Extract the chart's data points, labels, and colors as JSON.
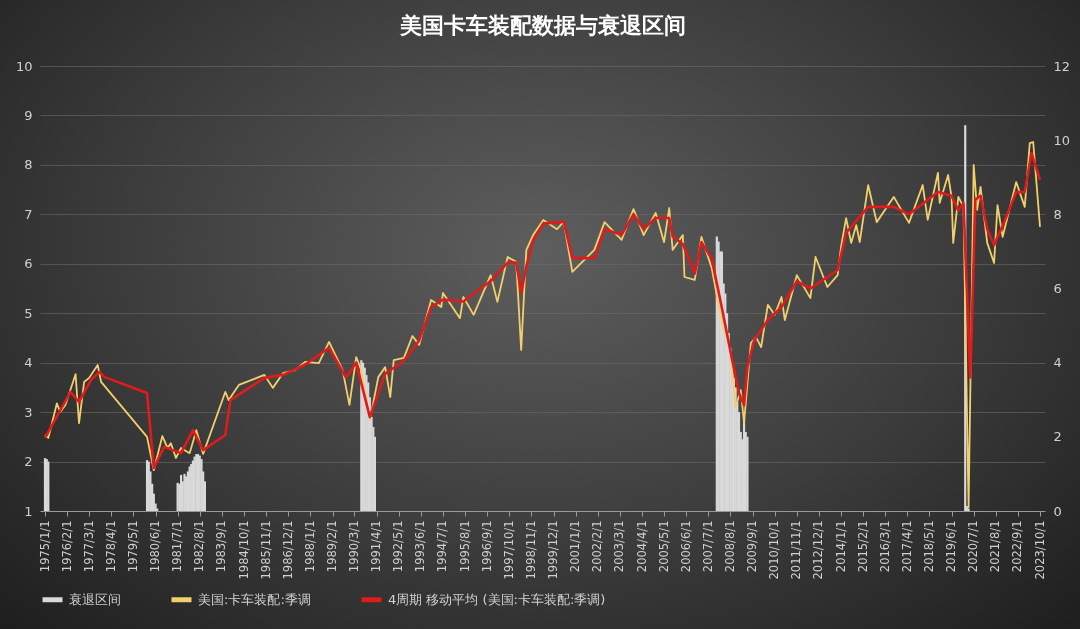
{
  "chart_data": {
    "type": "line",
    "title": "美国卡车装配数据与衰退区间",
    "ylim": [
      1,
      10
    ],
    "yticks": [
      1,
      2,
      3,
      4,
      5,
      6,
      7,
      8,
      9,
      10
    ],
    "y2lim": [
      0,
      12
    ],
    "y2ticks": [
      0,
      2,
      4,
      6,
      8,
      10,
      12
    ],
    "xlim": [
      "1975-01-01",
      "2023-10-01"
    ],
    "xticks": [
      {
        "value": "1975-01-01",
        "label": "1975/1/1"
      },
      {
        "value": "1976-02-01",
        "label": "1976/2/1"
      },
      {
        "value": "1977-03-01",
        "label": "1977/3/1"
      },
      {
        "value": "1978-04-01",
        "label": "1978/4/1"
      },
      {
        "value": "1979-05-01",
        "label": "1979/5/1"
      },
      {
        "value": "1980-06-01",
        "label": "1980/6/1"
      },
      {
        "value": "1981-07-01",
        "label": "1981/7/1"
      },
      {
        "value": "1982-08-01",
        "label": "1982/8/1"
      },
      {
        "value": "1983-09-01",
        "label": "1983/9/1"
      },
      {
        "value": "1984-10-01",
        "label": "1984/10/1"
      },
      {
        "value": "1985-11-01",
        "label": "1985/11/1"
      },
      {
        "value": "1986-12-01",
        "label": "1986/12/1"
      },
      {
        "value": "1988-01-01",
        "label": "1988/1/1"
      },
      {
        "value": "1989-02-01",
        "label": "1989/2/1"
      },
      {
        "value": "1990-03-01",
        "label": "1990/3/1"
      },
      {
        "value": "1991-04-01",
        "label": "1991/4/1"
      },
      {
        "value": "1992-05-01",
        "label": "1992/5/1"
      },
      {
        "value": "1993-06-01",
        "label": "1993/6/1"
      },
      {
        "value": "1994-07-01",
        "label": "1994/7/1"
      },
      {
        "value": "1995-08-01",
        "label": "1995/8/1"
      },
      {
        "value": "1996-09-01",
        "label": "1996/9/1"
      },
      {
        "value": "1997-10-01",
        "label": "1997/10/1"
      },
      {
        "value": "1998-11-01",
        "label": "1998/11/1"
      },
      {
        "value": "1999-12-01",
        "label": "1999/12/1"
      },
      {
        "value": "2001-01-01",
        "label": "2001/1/1"
      },
      {
        "value": "2002-02-01",
        "label": "2002/2/1"
      },
      {
        "value": "2003-03-01",
        "label": "2003/3/1"
      },
      {
        "value": "2004-04-01",
        "label": "2004/4/1"
      },
      {
        "value": "2005-05-01",
        "label": "2005/5/1"
      },
      {
        "value": "2006-06-01",
        "label": "2006/6/1"
      },
      {
        "value": "2007-07-01",
        "label": "2007/7/1"
      },
      {
        "value": "2008-08-01",
        "label": "2008/8/1"
      },
      {
        "value": "2009-09-01",
        "label": "2009/9/1"
      },
      {
        "value": "2010-10-01",
        "label": "2010/10/1"
      },
      {
        "value": "2011-11-01",
        "label": "2011/11/1"
      },
      {
        "value": "2012-12-01",
        "label": "2012/12/1"
      },
      {
        "value": "2014-01-01",
        "label": "2014/1/1"
      },
      {
        "value": "2015-02-01",
        "label": "2015/2/1"
      },
      {
        "value": "2016-03-01",
        "label": "2016/3/1"
      },
      {
        "value": "2017-04-01",
        "label": "2017/4/1"
      },
      {
        "value": "2018-05-01",
        "label": "2018/5/1"
      },
      {
        "value": "2019-06-01",
        "label": "2019/6/1"
      },
      {
        "value": "2020-07-01",
        "label": "2020/7/1"
      },
      {
        "value": "2021-08-01",
        "label": "2021/8/1"
      },
      {
        "value": "2022-09-01",
        "label": "2022/9/1"
      },
      {
        "value": "2023-10-01",
        "label": "2023/10/1"
      }
    ],
    "grid": "y",
    "legend": "bottom",
    "series": [
      {
        "name": "衰退区间",
        "type": "bar",
        "color": "#d9d9d9",
        "x": [
          "1975-01",
          "1975-02",
          "1975-03",
          "1980-01",
          "1980-02",
          "1980-03",
          "1980-04",
          "1980-05",
          "1980-06",
          "1980-07",
          "1981-07",
          "1981-08",
          "1981-09",
          "1981-10",
          "1981-11",
          "1981-12",
          "1982-01",
          "1982-02",
          "1982-03",
          "1982-04",
          "1982-05",
          "1982-06",
          "1982-07",
          "1982-08",
          "1982-09",
          "1982-10",
          "1982-11",
          "1990-07",
          "1990-08",
          "1990-09",
          "1990-10",
          "1990-11",
          "1990-12",
          "1991-01",
          "1991-02",
          "1991-03",
          "2007-12",
          "2008-01",
          "2008-02",
          "2008-03",
          "2008-04",
          "2008-05",
          "2008-06",
          "2008-07",
          "2008-08",
          "2008-09",
          "2008-10",
          "2008-11",
          "2008-12",
          "2009-01",
          "2009-02",
          "2009-03",
          "2009-04",
          "2009-05",
          "2009-06",
          "2020-02",
          "2020-03",
          "2020-04"
        ],
        "values": [
          2.07,
          2.05,
          2.0,
          2.03,
          2.0,
          1.8,
          1.55,
          1.35,
          1.15,
          1.05,
          1.57,
          1.55,
          1.73,
          1.6,
          1.75,
          1.7,
          1.8,
          1.9,
          1.95,
          2.02,
          2.1,
          2.15,
          2.15,
          2.12,
          2.05,
          1.8,
          1.6,
          4.05,
          4.0,
          3.9,
          3.75,
          3.6,
          3.3,
          2.9,
          2.7,
          2.5,
          6.55,
          6.45,
          6.25,
          6.25,
          5.6,
          5.4,
          5.0,
          4.6,
          4.3,
          4.0,
          3.7,
          3.5,
          3.2,
          3.0,
          2.6,
          2.45,
          2.85,
          2.6,
          2.5,
          8.8,
          1.1,
          1.05
        ]
      },
      {
        "name": "美国:卡车装配:季调",
        "type": "line",
        "axis": "y2",
        "color": "#f2cf6b",
        "x": [
          "1975-01",
          "1975-03",
          "1975-08",
          "1975-10",
          "1976-01",
          "1976-07",
          "1976-09",
          "1976-12",
          "1977-03",
          "1977-08",
          "1977-10",
          "1980-01",
          "1980-05",
          "1980-10",
          "1981-01",
          "1981-03",
          "1981-06",
          "1981-09",
          "1982-02",
          "1982-06",
          "1982-10",
          "1983-11",
          "1984-01",
          "1984-07",
          "1985-10",
          "1986-03",
          "1986-09",
          "1987-04",
          "1987-10",
          "1988-06",
          "1988-12",
          "1989-08",
          "1989-12",
          "1990-04",
          "1990-07",
          "1990-12",
          "1991-05",
          "1991-09",
          "1991-12",
          "1992-02",
          "1992-08",
          "1993-01",
          "1993-05",
          "1993-12",
          "1994-06",
          "1994-07",
          "1995-05",
          "1995-07",
          "1996-01",
          "1996-11",
          "1997-03",
          "1997-09",
          "1998-02",
          "1998-05",
          "1998-08",
          "1998-12",
          "1999-06",
          "2000-02",
          "2000-06",
          "2000-11",
          "2001-12",
          "2002-06",
          "2003-04",
          "2003-11",
          "2004-05",
          "2004-12",
          "2005-05",
          "2005-08",
          "2005-10",
          "2006-04",
          "2006-05",
          "2006-11",
          "2007-03",
          "2007-09",
          "2008-02",
          "2008-08",
          "2008-11",
          "2009-02",
          "2009-04",
          "2009-08",
          "2009-11",
          "2010-02",
          "2010-06",
          "2010-10",
          "2011-02",
          "2011-04",
          "2011-11",
          "2012-07",
          "2012-10",
          "2013-05",
          "2013-11",
          "2014-01",
          "2014-04",
          "2014-07",
          "2014-10",
          "2014-12",
          "2015-05",
          "2015-10",
          "2016-08",
          "2017-05",
          "2018-01",
          "2018-04",
          "2018-10",
          "2018-11",
          "2019-04",
          "2019-06",
          "2019-07",
          "2019-10",
          "2020-01",
          "2020-04",
          "2020-07",
          "2020-09",
          "2020-11",
          "2021-03",
          "2021-07",
          "2021-09",
          "2021-12",
          "2022-08",
          "2023-01",
          "2023-04",
          "2023-06",
          "2023-10"
        ],
        "values": [
          2.05,
          1.97,
          2.9,
          2.67,
          2.86,
          3.69,
          2.37,
          3.48,
          3.59,
          3.94,
          3.48,
          2.0,
          1.1,
          2.02,
          1.7,
          1.83,
          1.43,
          1.7,
          1.56,
          2.18,
          1.54,
          3.21,
          2.99,
          3.4,
          3.67,
          3.32,
          3.72,
          3.8,
          4.02,
          3.99,
          4.56,
          3.8,
          2.86,
          4.15,
          3.8,
          2.45,
          3.61,
          3.88,
          3.07,
          4.07,
          4.13,
          4.72,
          4.48,
          5.69,
          5.5,
          5.88,
          5.2,
          5.77,
          5.29,
          6.36,
          5.64,
          6.85,
          6.72,
          4.34,
          7.04,
          7.44,
          7.85,
          7.6,
          7.8,
          6.45,
          7.04,
          7.79,
          7.31,
          8.14,
          7.44,
          8.04,
          7.25,
          8.17,
          7.04,
          7.44,
          6.31,
          6.23,
          7.39,
          6.55,
          5.3,
          4.3,
          2.8,
          3.26,
          2.37,
          4.53,
          4.69,
          4.42,
          5.56,
          5.29,
          5.77,
          5.15,
          6.36,
          5.74,
          6.85,
          6.04,
          6.36,
          7.12,
          7.9,
          7.23,
          7.71,
          7.25,
          8.79,
          7.79,
          8.47,
          7.77,
          8.79,
          7.85,
          9.12,
          8.31,
          9.06,
          8.47,
          7.23,
          8.47,
          8.2,
          0.1,
          9.33,
          8.12,
          8.74,
          7.23,
          6.69,
          8.25,
          7.39,
          8.87,
          8.2,
          9.92,
          9.95,
          7.66
        ]
      },
      {
        "name": "4周期 移动平均 (美国:卡车装配:季调)",
        "type": "line",
        "axis": "y2",
        "color": "#e01b1b",
        "x": [
          "1975-01",
          "1976-04",
          "1976-09",
          "1977-04",
          "1977-09",
          "1977-12",
          "1980-01",
          "1980-05",
          "1980-11",
          "1981-09",
          "1982-04",
          "1982-10",
          "1983-11",
          "1984-02",
          "1985-10",
          "1986-09",
          "1987-10",
          "1988-12",
          "1989-10",
          "1990-04",
          "1990-12",
          "1991-09",
          "1992-08",
          "1993-05",
          "1993-12",
          "1994-07",
          "1995-07",
          "1996-11",
          "1997-09",
          "1998-02",
          "1998-05",
          "1998-08",
          "1998-12",
          "1999-06",
          "2000-06",
          "2000-11",
          "2001-12",
          "2002-06",
          "2003-04",
          "2003-11",
          "2004-05",
          "2004-12",
          "2005-08",
          "2005-10",
          "2006-04",
          "2006-11",
          "2007-03",
          "2007-09",
          "2008-02",
          "2008-09",
          "2009-01",
          "2009-04",
          "2009-06",
          "2009-10",
          "2010-06",
          "2011-02",
          "2011-11",
          "2012-07",
          "2013-11",
          "2014-04",
          "2015-05",
          "2016-08",
          "2017-05",
          "2018-10",
          "2019-06",
          "2019-10",
          "2020-01",
          "2020-05",
          "2020-08",
          "2020-11",
          "2021-03",
          "2021-07",
          "2022-01",
          "2022-08",
          "2023-01",
          "2023-05",
          "2023-10"
        ],
        "values": [
          1.97,
          3.21,
          2.94,
          3.53,
          3.75,
          3.61,
          3.18,
          1.16,
          1.73,
          1.56,
          2.18,
          1.64,
          2.05,
          2.99,
          3.59,
          3.67,
          3.95,
          4.4,
          3.6,
          4.0,
          2.53,
          3.7,
          4.05,
          4.6,
          5.5,
          5.7,
          5.65,
          6.2,
          6.7,
          6.7,
          5.88,
          6.6,
          7.3,
          7.75,
          7.8,
          6.82,
          6.82,
          7.6,
          7.45,
          8.0,
          7.6,
          7.9,
          7.9,
          7.4,
          7.2,
          6.4,
          7.25,
          6.8,
          5.69,
          4.07,
          3.18,
          2.86,
          3.88,
          4.61,
          5.15,
          5.5,
          6.2,
          6.0,
          6.5,
          7.5,
          8.2,
          8.2,
          8.0,
          8.6,
          8.5,
          8.1,
          8.3,
          3.6,
          8.4,
          8.5,
          7.6,
          7.17,
          7.8,
          8.6,
          8.6,
          9.65,
          8.93
        ]
      }
    ]
  }
}
